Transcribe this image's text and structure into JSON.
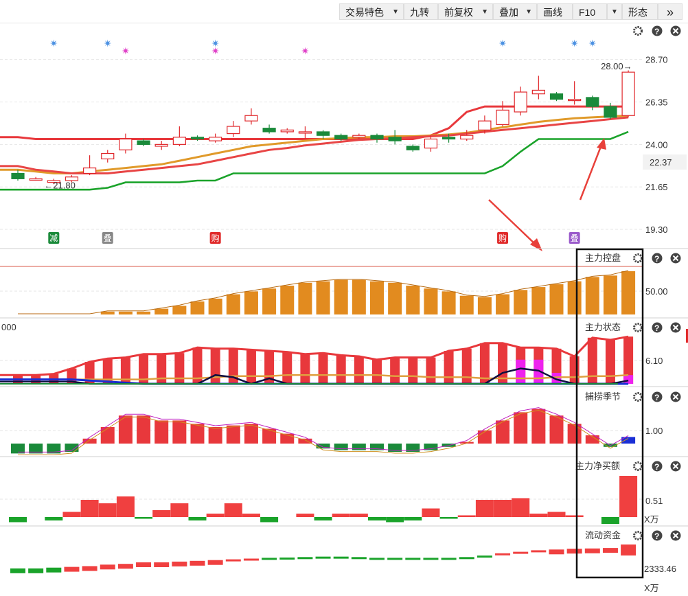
{
  "toolbar": {
    "buttons": [
      {
        "label": "交易特色",
        "caret": "▼"
      },
      {
        "label": "九转",
        "caret": ""
      },
      {
        "label": "前复权",
        "caret": "▼"
      },
      {
        "label": "叠加",
        "caret": "▼"
      },
      {
        "label": "画线",
        "caret": ""
      },
      {
        "label": "F10",
        "caret": ""
      },
      {
        "label": "▼",
        "caret": ""
      },
      {
        "label": "形态",
        "caret": ""
      },
      {
        "label": "»",
        "caret": ""
      }
    ]
  },
  "chart_data": [
    {
      "type": "candlestick",
      "panel": "main",
      "yticks": [
        "28.70",
        "26.35",
        "24.00",
        "21.65",
        "19.30"
      ],
      "current_price_label": "22.37",
      "candles": [
        {
          "o": 22.4,
          "c": 22.1,
          "h": 22.6,
          "l": 22.0
        },
        {
          "o": 22.1,
          "c": 22.1,
          "h": 22.2,
          "l": 22.0
        },
        {
          "o": 21.9,
          "c": 22.0,
          "h": 22.1,
          "l": 21.8
        },
        {
          "o": 22.0,
          "c": 22.2,
          "h": 22.3,
          "l": 21.9
        },
        {
          "o": 22.4,
          "c": 22.7,
          "h": 23.4,
          "l": 22.3
        },
        {
          "o": 23.2,
          "c": 23.5,
          "h": 23.7,
          "l": 23.0
        },
        {
          "o": 23.7,
          "c": 24.3,
          "h": 24.6,
          "l": 23.5
        },
        {
          "o": 24.2,
          "c": 24.0,
          "h": 24.3,
          "l": 23.9
        },
        {
          "o": 23.9,
          "c": 24.0,
          "h": 24.2,
          "l": 23.7
        },
        {
          "o": 24.0,
          "c": 24.4,
          "h": 25.0,
          "l": 23.9
        },
        {
          "o": 24.4,
          "c": 24.3,
          "h": 24.5,
          "l": 24.2
        },
        {
          "o": 24.2,
          "c": 24.4,
          "h": 24.6,
          "l": 24.1
        },
        {
          "o": 24.6,
          "c": 25.0,
          "h": 25.3,
          "l": 24.4
        },
        {
          "o": 25.3,
          "c": 25.6,
          "h": 26.0,
          "l": 25.1
        },
        {
          "o": 24.9,
          "c": 24.7,
          "h": 25.1,
          "l": 24.6
        },
        {
          "o": 24.7,
          "c": 24.8,
          "h": 24.9,
          "l": 24.6
        },
        {
          "o": 24.7,
          "c": 24.7,
          "h": 25.0,
          "l": 24.3
        },
        {
          "o": 24.7,
          "c": 24.5,
          "h": 24.8,
          "l": 24.3
        },
        {
          "o": 24.5,
          "c": 24.3,
          "h": 24.6,
          "l": 24.2
        },
        {
          "o": 24.4,
          "c": 24.5,
          "h": 24.6,
          "l": 24.3
        },
        {
          "o": 24.5,
          "c": 24.3,
          "h": 24.6,
          "l": 24.1
        },
        {
          "o": 24.4,
          "c": 24.2,
          "h": 24.8,
          "l": 24.0
        },
        {
          "o": 23.9,
          "c": 23.7,
          "h": 24.0,
          "l": 23.6
        },
        {
          "o": 23.8,
          "c": 24.3,
          "h": 24.5,
          "l": 23.6
        },
        {
          "o": 24.4,
          "c": 24.3,
          "h": 24.6,
          "l": 24.1
        },
        {
          "o": 24.3,
          "c": 24.5,
          "h": 24.8,
          "l": 24.2
        },
        {
          "o": 24.8,
          "c": 25.3,
          "h": 25.6,
          "l": 24.6
        },
        {
          "o": 25.1,
          "c": 25.9,
          "h": 26.4,
          "l": 25.0
        },
        {
          "o": 25.8,
          "c": 26.9,
          "h": 27.2,
          "l": 25.6
        },
        {
          "o": 26.8,
          "c": 27.0,
          "h": 27.8,
          "l": 26.5
        },
        {
          "o": 26.8,
          "c": 26.5,
          "h": 26.9,
          "l": 26.4
        },
        {
          "o": 26.5,
          "c": 26.5,
          "h": 27.5,
          "l": 26.2
        },
        {
          "o": 26.6,
          "c": 26.1,
          "h": 26.7,
          "l": 25.9
        },
        {
          "o": 26.1,
          "c": 25.5,
          "h": 26.3,
          "l": 25.4
        },
        {
          "o": 25.6,
          "c": 28.0,
          "h": 28.1,
          "l": 25.5
        }
      ],
      "series": [
        {
          "name": "",
          "color": "#e8383c",
          "values": [
            24.4,
            24.3,
            24.3,
            24.3,
            24.3,
            24.3,
            24.3,
            24.3,
            24.3,
            24.3,
            24.3,
            24.3,
            24.3,
            24.3,
            24.3,
            24.3,
            24.3,
            24.3,
            24.3,
            24.3,
            24.3,
            24.3,
            24.3,
            24.5,
            24.9,
            25.8,
            26.1,
            26.1,
            26.1,
            26.1,
            26.1,
            26.1,
            26.1,
            26.1,
            26.1
          ]
        },
        {
          "name": "",
          "color": "#e09a2a",
          "values": [
            22.6,
            22.5,
            22.4,
            22.4,
            22.5,
            22.6,
            22.7,
            22.8,
            22.9,
            23.1,
            23.3,
            23.5,
            23.7,
            23.9,
            24.0,
            24.1,
            24.2,
            24.3,
            24.35,
            24.4,
            24.4,
            24.45,
            24.45,
            24.5,
            24.55,
            24.65,
            24.8,
            24.95,
            25.1,
            25.25,
            25.35,
            25.45,
            25.5,
            25.55,
            25.6
          ]
        },
        {
          "name": "",
          "color": "#e84545",
          "values": [
            22.8,
            22.6,
            22.5,
            22.4,
            22.4,
            22.4,
            22.5,
            22.6,
            22.7,
            22.8,
            22.9,
            23.1,
            23.3,
            23.5,
            23.7,
            23.8,
            23.95,
            24.05,
            24.15,
            24.25,
            24.3,
            24.35,
            24.4,
            24.45,
            24.5,
            24.6,
            24.7,
            24.8,
            24.9,
            25.0,
            25.1,
            25.2,
            25.3,
            25.4,
            25.5
          ]
        },
        {
          "name": "",
          "color": "#1aa32a",
          "values": [
            21.5,
            21.5,
            21.5,
            21.5,
            21.5,
            21.6,
            21.9,
            21.9,
            21.9,
            21.9,
            22.0,
            22.0,
            22.4,
            22.4,
            22.4,
            22.4,
            22.4,
            22.4,
            22.4,
            22.4,
            22.4,
            22.4,
            22.4,
            22.4,
            22.4,
            22.4,
            22.4,
            22.8,
            23.6,
            24.3,
            24.3,
            24.3,
            24.3,
            24.3,
            24.7
          ]
        }
      ],
      "annotations": [
        "21.80",
        "28.00"
      ],
      "signals": [
        {
          "index": 2,
          "label": "减",
          "color": "#1a8a3a"
        },
        {
          "index": 5,
          "label": "叠",
          "color": "#888888"
        },
        {
          "index": 11,
          "label": "购",
          "color": "#e02a2a"
        },
        {
          "index": 27,
          "label": "购",
          "color": "#e02a2a"
        },
        {
          "index": 31,
          "label": "叠",
          "color": "#9a5acb"
        }
      ],
      "markers_blue": [
        2,
        5,
        11,
        27,
        31,
        32
      ],
      "markers_pink": [
        6,
        11,
        16
      ]
    },
    {
      "type": "bar",
      "panel": "sub1",
      "title": "主力控盘",
      "ytick": "50.00",
      "values": [
        0,
        0,
        0,
        0,
        0,
        2,
        2,
        2,
        4,
        6,
        9,
        11,
        14,
        16,
        18,
        20,
        22,
        23,
        24,
        24,
        23,
        22,
        20,
        18,
        16,
        13,
        12,
        14,
        17,
        19,
        21,
        23,
        26,
        27,
        30
      ],
      "color": "#e28b1f"
    },
    {
      "type": "bar",
      "panel": "sub2",
      "title": "主力状态",
      "ytick": "6.10",
      "red_values": [
        8,
        8,
        9,
        14,
        20,
        23,
        24,
        27,
        27,
        28,
        33,
        32,
        32,
        31,
        30,
        29,
        27,
        28,
        26,
        25,
        22,
        24,
        24,
        24,
        30,
        32,
        37,
        37,
        33,
        33,
        32,
        25,
        42,
        40,
        43
      ],
      "magenta": [
        0,
        0,
        0,
        0,
        0,
        0,
        0,
        0,
        0,
        0,
        0,
        0,
        0,
        0,
        0,
        0,
        0,
        0,
        0,
        0,
        0,
        0,
        0,
        0,
        0,
        0,
        0,
        0,
        22,
        22,
        10,
        0,
        0,
        0,
        8
      ],
      "dark_line": [
        2,
        2,
        2,
        2,
        0,
        0,
        0,
        0,
        0,
        0,
        0,
        8,
        6,
        0,
        5,
        0,
        0,
        0,
        0,
        0,
        0,
        0,
        0,
        0,
        0,
        0,
        0,
        10,
        14,
        12,
        4,
        0,
        0,
        0,
        3
      ],
      "orange_line": [
        4,
        4,
        4,
        4,
        4,
        4,
        4,
        4,
        5,
        5,
        5,
        6,
        7,
        7,
        7,
        8,
        8,
        8,
        8,
        8,
        8,
        7,
        7,
        6,
        6,
        6,
        5,
        5,
        5,
        5,
        6,
        6,
        7,
        7,
        8
      ],
      "blue_line": [
        4,
        4,
        4,
        4,
        3,
        2,
        1,
        0,
        0,
        0,
        0,
        0,
        0,
        0,
        0,
        0,
        0,
        0,
        0,
        0,
        0,
        0,
        0,
        0,
        0,
        0,
        0,
        0,
        0,
        0,
        0,
        0,
        0,
        0,
        0
      ],
      "left_value_label": "000"
    },
    {
      "type": "bar",
      "panel": "sub3",
      "title": "捕捞季节",
      "ytick": "1.00",
      "values": [
        -0.6,
        -0.6,
        -0.6,
        -0.5,
        0.3,
        1.0,
        1.7,
        1.7,
        1.4,
        1.4,
        1.2,
        1.0,
        1.1,
        1.2,
        0.9,
        0.6,
        0.3,
        -0.3,
        -0.4,
        -0.4,
        -0.4,
        -0.5,
        -0.5,
        -0.4,
        -0.2,
        0.1,
        0.8,
        1.4,
        1.9,
        2.1,
        1.7,
        1.2,
        0.5,
        -0.2,
        0.4
      ],
      "last_color": "#1a2fd6"
    },
    {
      "type": "bar",
      "panel": "sub4",
      "title": "主力净买额",
      "ytick": "0.51",
      "unit": "X万",
      "values": [
        -0.3,
        0,
        -0.2,
        0.3,
        1.0,
        0.8,
        1.2,
        -0.1,
        0.4,
        0.8,
        -0.2,
        0.2,
        0.8,
        0.2,
        -0.3,
        0,
        0.2,
        -0.2,
        0.2,
        0.2,
        -0.2,
        -0.3,
        -0.2,
        0.5,
        -0.1,
        0.1,
        1.0,
        1.0,
        1.1,
        0.2,
        0.3,
        0.1,
        0,
        -0.4,
        2.4
      ]
    },
    {
      "type": "bar",
      "panel": "sub5",
      "title": "流动资金",
      "ytick": "2333.46",
      "unit": "X万",
      "values": [
        -0.9,
        -0.9,
        -0.85,
        -0.8,
        -0.75,
        -0.65,
        -0.6,
        -0.5,
        -0.5,
        -0.45,
        -0.4,
        -0.35,
        -0.3,
        -0.25,
        -0.2,
        -0.18,
        -0.15,
        -0.12,
        -0.12,
        -0.15,
        -0.2,
        -0.2,
        -0.2,
        -0.2,
        -0.2,
        -0.15,
        -0.05,
        0.1,
        0.2,
        0.3,
        0.35,
        0.4,
        0.42,
        0.45,
        0.75
      ]
    }
  ]
}
